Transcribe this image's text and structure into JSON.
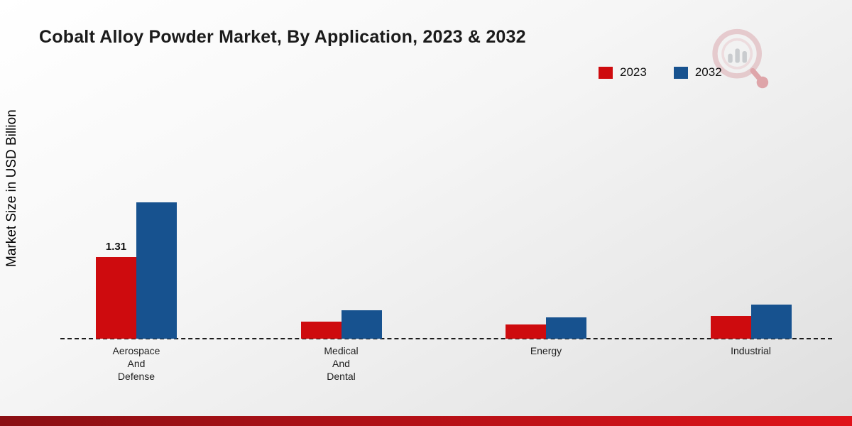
{
  "chart_data": {
    "type": "bar",
    "title": "Cobalt Alloy Powder Market, By Application, 2023 & 2032",
    "ylabel": "Market Size in USD Billion",
    "categories": [
      "Aerospace And Defense",
      "Medical And Dental",
      "Energy",
      "Industrial"
    ],
    "category_label_lines": [
      [
        "Aerospace",
        "And",
        "Defense"
      ],
      [
        "Medical",
        "And",
        "Dental"
      ],
      [
        "Energy"
      ],
      [
        "Industrial"
      ]
    ],
    "series": [
      {
        "name": "2023",
        "color": "#ce0b0e",
        "values": [
          1.31,
          0.27,
          0.23,
          0.36
        ]
      },
      {
        "name": "2032",
        "color": "#17528f",
        "values": [
          2.18,
          0.46,
          0.34,
          0.54
        ]
      }
    ],
    "value_labels": [
      {
        "series_index": 0,
        "category_index": 0,
        "text": "1.31"
      }
    ],
    "ylim": [
      0,
      2.5
    ],
    "grid": false,
    "legend_position": "top-right",
    "axis_line_style": "dashed",
    "axis_line_color": "#1c1c1c"
  },
  "footer": {
    "gradient": [
      "#8a0f14",
      "#e01219"
    ]
  },
  "watermark": {
    "icon": "mrfr-logo-icon",
    "ring_color": "#d79ba2",
    "bar_color": "#9aa0a6",
    "dot_color": "#c94b55"
  }
}
